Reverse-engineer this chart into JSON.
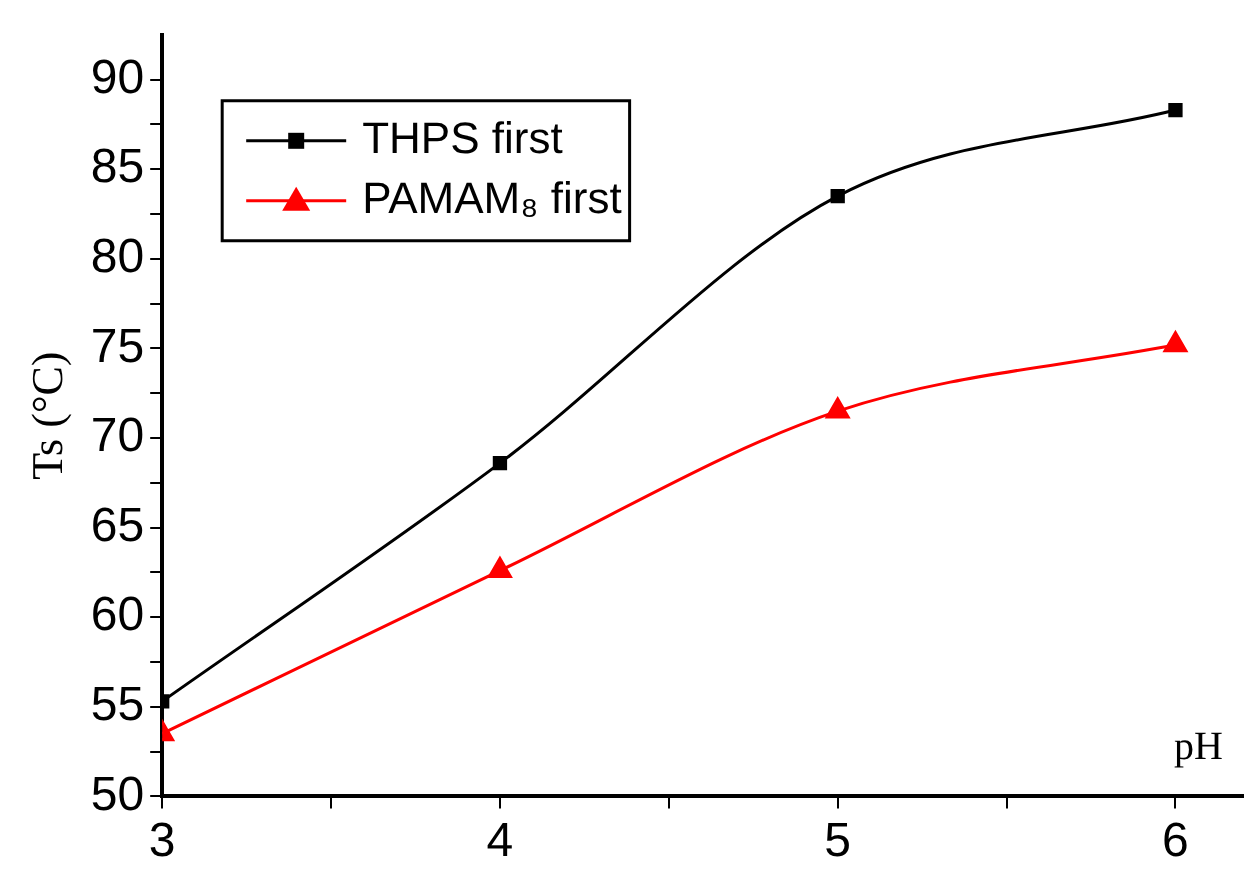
{
  "chart_data": {
    "type": "line",
    "xlabel": "pH",
    "ylabel": "Ts (°C)",
    "x": [
      3,
      4,
      5,
      6
    ],
    "series": [
      {
        "name": "THPS first",
        "color": "#000000",
        "marker": "square",
        "values": [
          55.3,
          68.6,
          83.5,
          88.3
        ]
      },
      {
        "name": "PAMAM₈ first",
        "color": "#ff0000",
        "marker": "triangle",
        "values": [
          53.5,
          62.6,
          71.5,
          75.2
        ]
      }
    ],
    "xlim": [
      3,
      6.2
    ],
    "xticks": [
      3,
      {
        "value": 3.5,
        "label": null
      },
      4,
      {
        "value": 4.5,
        "label": null
      },
      5,
      {
        "value": 5.5,
        "label": null
      },
      6
    ],
    "ylim": [
      50,
      92.5
    ],
    "yticks": [
      50,
      {
        "value": 52.5,
        "label": null
      },
      55,
      {
        "value": 57.5,
        "label": null
      },
      60,
      {
        "value": 62.5,
        "label": null
      },
      65,
      {
        "value": 67.5,
        "label": null
      },
      70,
      {
        "value": 72.5,
        "label": null
      },
      75,
      {
        "value": 77.5,
        "label": null
      },
      80,
      {
        "value": 82.5,
        "label": null
      },
      85,
      {
        "value": 87.5,
        "label": null
      },
      90
    ],
    "grid": false,
    "legend": "top left",
    "line_style": "solid"
  }
}
